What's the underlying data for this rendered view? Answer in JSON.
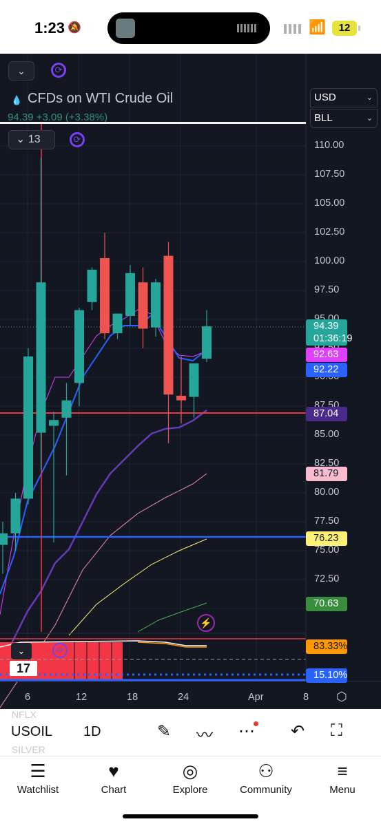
{
  "status_bar": {
    "time": "1:23",
    "battery": "12"
  },
  "chart_header": {
    "title": "CFDs on WTI Crude Oil",
    "quote": "94.39  +3.09 (+3.38%)",
    "indicator_count": "13",
    "currency": "USD",
    "unit": "BLL"
  },
  "price_axis": {
    "ticks": [
      "110.00",
      "107.50",
      "105.00",
      "102.50",
      "100.00",
      "97.50",
      "95.00",
      "92.50",
      "90.00",
      "87.50",
      "85.00",
      "82.50",
      "80.00",
      "77.50",
      "75.00",
      "72.50",
      "70.00"
    ],
    "badges": [
      {
        "value": "94.39",
        "sub": "01:36:19",
        "bg": "#26a69a",
        "fg": "#ffffff"
      },
      {
        "value": "92.63",
        "bg": "#e040fb",
        "fg": "#ffffff"
      },
      {
        "value": "92.22",
        "bg": "#2962ff",
        "fg": "#ffffff"
      },
      {
        "value": "87.04",
        "bg": "#4a2a8a",
        "fg": "#ffffff"
      },
      {
        "value": "81.79",
        "bg": "#f8bbd0",
        "fg": "#131722"
      },
      {
        "value": "76.23",
        "bg": "#fff176",
        "fg": "#131722"
      },
      {
        "value": "70.63",
        "bg": "#388e3c",
        "fg": "#ffffff"
      },
      {
        "value": "83.33%",
        "bg": "#ff9800",
        "fg": "#131722"
      },
      {
        "value": "15.10%",
        "bg": "#2962ff",
        "fg": "#ffffff"
      }
    ]
  },
  "time_axis": {
    "ticks": [
      "6",
      "12",
      "18",
      "24",
      "Apr",
      "8"
    ]
  },
  "colors": {
    "background": "#131722",
    "up": "#26a69a",
    "down": "#ef5350",
    "blue_line": "#2962ff",
    "red_line": "#f23645"
  },
  "chart_data": {
    "type": "candlestick",
    "title": "CFDs on WTI Crude Oil",
    "x_ticks": [
      "6",
      "12",
      "18",
      "24",
      "Apr",
      "8"
    ],
    "ylim": [
      69,
      113
    ],
    "candles": [
      {
        "o": 75.5,
        "h": 77.5,
        "l": 73,
        "c": 76.5
      },
      {
        "o": 76.5,
        "h": 80,
        "l": 75,
        "c": 79.5
      },
      {
        "o": 79.5,
        "h": 92.5,
        "l": 79,
        "c": 91.8
      },
      {
        "o": 85.2,
        "h": 109,
        "l": 82,
        "c": 98.2
      },
      {
        "o": 85.8,
        "h": 87,
        "l": 75.7,
        "c": 86.3
      },
      {
        "o": 86.5,
        "h": 89.5,
        "l": 81.5,
        "c": 88
      },
      {
        "o": 89.5,
        "h": 96,
        "l": 87.5,
        "c": 95.8
      },
      {
        "o": 96.5,
        "h": 99.5,
        "l": 95.8,
        "c": 99.3
      },
      {
        "o": 100.3,
        "h": 102.5,
        "l": 93.3,
        "c": 93.8
      },
      {
        "o": 93.8,
        "h": 95.5,
        "l": 93.3,
        "c": 95.5
      },
      {
        "o": 95.3,
        "h": 99.7,
        "l": 94.5,
        "c": 99
      },
      {
        "o": 98.2,
        "h": 99.5,
        "l": 92.5,
        "c": 94.2
      },
      {
        "o": 94.3,
        "h": 98.5,
        "l": 93.5,
        "c": 98.2
      },
      {
        "o": 100.5,
        "h": 101.7,
        "l": 84.3,
        "c": 88.5
      },
      {
        "o": 88.4,
        "h": 91.8,
        "l": 86,
        "c": 88
      },
      {
        "o": 88.3,
        "h": 91.2,
        "l": 86.5,
        "c": 91.2
      },
      {
        "o": 91.6,
        "h": 95.8,
        "l": 91.3,
        "c": 94.4
      }
    ],
    "horizontal_lines": [
      87.04,
      76.23
    ],
    "legend": "none"
  },
  "toolbar": {
    "symbol": "USOIL",
    "timeframe": "1D",
    "ghost_prev": "NFLX",
    "ghost_next": "SILVER"
  },
  "tabbar": {
    "items": [
      "Watchlist",
      "Chart",
      "Explore",
      "Community",
      "Menu"
    ]
  }
}
